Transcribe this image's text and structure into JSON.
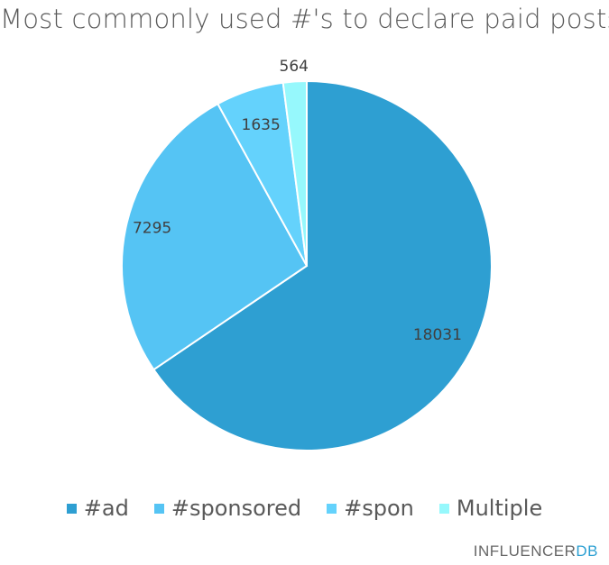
{
  "chart_data": {
    "type": "pie",
    "title": "Most commonly used #'s to declare paid posts",
    "categories": [
      "#ad",
      "#sponsored",
      "#spon",
      "Multiple"
    ],
    "values": [
      18031,
      7295,
      1635,
      564
    ],
    "colors": [
      "#2e9fd2",
      "#55c4f4",
      "#64d2fc",
      "#96f8fc"
    ],
    "legend_position": "bottom",
    "data_labels": [
      "18031",
      "7295",
      "1635",
      "564"
    ]
  },
  "branding": {
    "part1": "INFLUENCER",
    "part2": "DB"
  }
}
